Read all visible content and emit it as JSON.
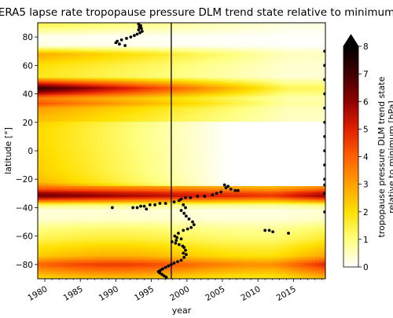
{
  "chart_data": {
    "type": "heatmap",
    "title": "ERA5 lapse rate tropopause pressure DLM trend state relative to minimum",
    "xlabel": "year",
    "ylabel": "latitude [°]",
    "xlim": [
      1979,
      2019.5
    ],
    "ylim": [
      -90,
      90
    ],
    "x_ticks": [
      "1980",
      "1985",
      "1990",
      "1995",
      "2000",
      "2005",
      "2010",
      "2015"
    ],
    "y_ticks": [
      "80",
      "60",
      "40",
      "20",
      "0",
      "−20",
      "−40",
      "−60",
      "−80"
    ],
    "colorbar": {
      "label_line1": "tropopause pressure DLM trend state",
      "label_line2": "relative to minimum [hPa]",
      "min": 0,
      "max": 8,
      "extend": "max",
      "ticks": [
        "0",
        "1",
        "2",
        "3",
        "4",
        "5",
        "6",
        "7",
        "8"
      ],
      "colormap": "afmhot_r",
      "colors": [
        "#ffffff",
        "#ffff80",
        "#ffc000",
        "#ff8000",
        "#e04000",
        "#a00000",
        "#300000",
        "#000000"
      ]
    },
    "vertical_line_year": 1997.8,
    "latitude_profile_hPa": [
      {
        "lat": 88,
        "value": 1.2
      },
      {
        "lat": 80,
        "value": 0.1
      },
      {
        "lat": 74,
        "value": 0.2
      },
      {
        "lat": 68,
        "value": 2.6
      },
      {
        "lat": 60,
        "value": 1.8
      },
      {
        "lat": 52,
        "value": 1.6
      },
      {
        "lat": 47,
        "value": 4.8
      },
      {
        "lat": 44,
        "value": 6.6
      },
      {
        "lat": 41,
        "value": 5.4
      },
      {
        "lat": 37,
        "value": 3.2
      },
      {
        "lat": 33,
        "value": 3.8
      },
      {
        "lat": 30,
        "value": 2.8
      },
      {
        "lat": 24,
        "value": 2.4
      },
      {
        "lat": 15,
        "value": 2.1
      },
      {
        "lat": 5,
        "value": 2.1
      },
      {
        "lat": -5,
        "value": 2.2
      },
      {
        "lat": -15,
        "value": 2.3
      },
      {
        "lat": -22,
        "value": 2.6
      },
      {
        "lat": -27,
        "value": 4.2
      },
      {
        "lat": -30,
        "value": 6.0
      },
      {
        "lat": -32,
        "value": 6.4
      },
      {
        "lat": -35,
        "value": 4.0
      },
      {
        "lat": -38,
        "value": 1.2
      },
      {
        "lat": -42,
        "value": 0.3
      },
      {
        "lat": -48,
        "value": 0.4
      },
      {
        "lat": -55,
        "value": 1.1
      },
      {
        "lat": -62,
        "value": 1.5
      },
      {
        "lat": -68,
        "value": 2.1
      },
      {
        "lat": -74,
        "value": 2.6
      },
      {
        "lat": -80,
        "value": 4.4
      },
      {
        "lat": -86,
        "value": 3.1
      },
      {
        "lat": -90,
        "value": 2.2
      }
    ],
    "minimum_location_points": [
      {
        "year": 1993.2,
        "lat": 89
      },
      {
        "year": 1993.5,
        "lat": 88
      },
      {
        "year": 1993.3,
        "lat": 87
      },
      {
        "year": 1993.6,
        "lat": 86
      },
      {
        "year": 1993.2,
        "lat": 85
      },
      {
        "year": 1993.7,
        "lat": 84
      },
      {
        "year": 1993.4,
        "lat": 83
      },
      {
        "year": 1993.0,
        "lat": 82
      },
      {
        "year": 1992.6,
        "lat": 81
      },
      {
        "year": 1992.1,
        "lat": 80
      },
      {
        "year": 1991.5,
        "lat": 79
      },
      {
        "year": 1990.8,
        "lat": 78
      },
      {
        "year": 1990.2,
        "lat": 77
      },
      {
        "year": 1990.0,
        "lat": 76
      },
      {
        "year": 1990.5,
        "lat": 75
      },
      {
        "year": 1991.3,
        "lat": 74
      },
      {
        "year": 2005.3,
        "lat": -24
      },
      {
        "year": 2005.8,
        "lat": -25
      },
      {
        "year": 2005.5,
        "lat": -26
      },
      {
        "year": 2006.2,
        "lat": -27
      },
      {
        "year": 2006.8,
        "lat": -28
      },
      {
        "year": 2007.2,
        "lat": -28
      },
      {
        "year": 2004.8,
        "lat": -29
      },
      {
        "year": 2004.2,
        "lat": -30
      },
      {
        "year": 2003.6,
        "lat": -31
      },
      {
        "year": 2002.5,
        "lat": -32
      },
      {
        "year": 2001.5,
        "lat": -32
      },
      {
        "year": 2000.5,
        "lat": -33
      },
      {
        "year": 1999.8,
        "lat": -33
      },
      {
        "year": 1999.2,
        "lat": -34
      },
      {
        "year": 1998.9,
        "lat": -35
      },
      {
        "year": 1998.2,
        "lat": -36
      },
      {
        "year": 1997.0,
        "lat": -37
      },
      {
        "year": 1996.2,
        "lat": -37
      },
      {
        "year": 1995.5,
        "lat": -38
      },
      {
        "year": 1994.8,
        "lat": -38
      },
      {
        "year": 1994.0,
        "lat": -39
      },
      {
        "year": 1993.5,
        "lat": -39
      },
      {
        "year": 1993.0,
        "lat": -40
      },
      {
        "year": 1992.4,
        "lat": -40
      },
      {
        "year": 1989.5,
        "lat": -40
      },
      {
        "year": 1994.3,
        "lat": -41
      },
      {
        "year": 1999.5,
        "lat": -38
      },
      {
        "year": 1999.8,
        "lat": -40
      },
      {
        "year": 1999.2,
        "lat": -42
      },
      {
        "year": 1999.6,
        "lat": -44
      },
      {
        "year": 1999.9,
        "lat": -46
      },
      {
        "year": 2000.3,
        "lat": -48
      },
      {
        "year": 2000.8,
        "lat": -50
      },
      {
        "year": 2001.0,
        "lat": -52
      },
      {
        "year": 2000.6,
        "lat": -54
      },
      {
        "year": 2000.1,
        "lat": -55
      },
      {
        "year": 1999.5,
        "lat": -56
      },
      {
        "year": 1998.8,
        "lat": -58
      },
      {
        "year": 1998.3,
        "lat": -60
      },
      {
        "year": 1998.6,
        "lat": -61
      },
      {
        "year": 1999.2,
        "lat": -62
      },
      {
        "year": 1998.5,
        "lat": -63
      },
      {
        "year": 1997.9,
        "lat": -64
      },
      {
        "year": 1998.4,
        "lat": -65
      },
      {
        "year": 1998.9,
        "lat": -66
      },
      {
        "year": 1999.4,
        "lat": -67
      },
      {
        "year": 1999.6,
        "lat": -68
      },
      {
        "year": 1999.8,
        "lat": -70
      },
      {
        "year": 1999.5,
        "lat": -72
      },
      {
        "year": 1999.9,
        "lat": -73
      },
      {
        "year": 1999.6,
        "lat": -75
      },
      {
        "year": 1999.2,
        "lat": -77
      },
      {
        "year": 1998.7,
        "lat": -78
      },
      {
        "year": 1998.2,
        "lat": -79
      },
      {
        "year": 1997.8,
        "lat": -80
      },
      {
        "year": 1997.4,
        "lat": -81
      },
      {
        "year": 1997.0,
        "lat": -82
      },
      {
        "year": 1996.6,
        "lat": -83
      },
      {
        "year": 1996.3,
        "lat": -84
      },
      {
        "year": 1996.0,
        "lat": -85
      },
      {
        "year": 1996.2,
        "lat": -86
      },
      {
        "year": 1996.5,
        "lat": -87
      },
      {
        "year": 1996.8,
        "lat": -88
      },
      {
        "year": 1997.1,
        "lat": -89
      },
      {
        "year": 2011.0,
        "lat": -56
      },
      {
        "year": 2011.6,
        "lat": -56
      },
      {
        "year": 2012.1,
        "lat": -57
      },
      {
        "year": 2014.3,
        "lat": -58
      },
      {
        "year": 2019.4,
        "lat": 70
      },
      {
        "year": 2019.4,
        "lat": 60
      },
      {
        "year": 2019.4,
        "lat": 50
      },
      {
        "year": 2019.4,
        "lat": 40
      },
      {
        "year": 2019.4,
        "lat": 30
      },
      {
        "year": 2019.4,
        "lat": 20
      },
      {
        "year": 2019.4,
        "lat": 10
      },
      {
        "year": 2019.4,
        "lat": 0
      },
      {
        "year": 2019.4,
        "lat": -10
      },
      {
        "year": 2019.4,
        "lat": -20
      },
      {
        "year": 2019.4,
        "lat": -24
      },
      {
        "year": 2019.4,
        "lat": -30
      },
      {
        "year": 2019.4,
        "lat": -43
      }
    ]
  }
}
